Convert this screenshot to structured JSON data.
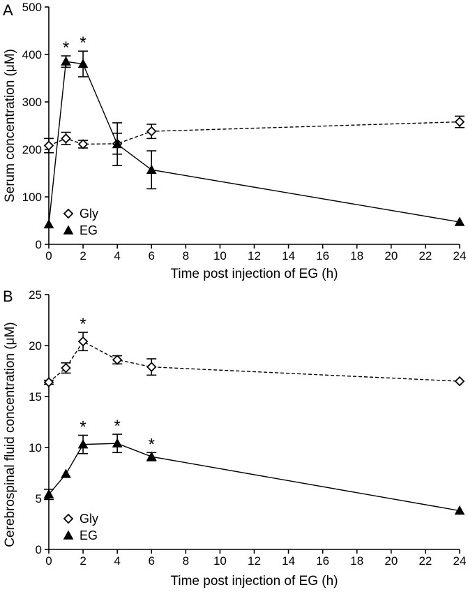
{
  "chart_data": [
    {
      "panel_label": "A",
      "type": "line",
      "title": "",
      "xlabel": "Time post injection of EG (h)",
      "ylabel": "Serum concentration (μM)",
      "xlim": [
        0,
        24
      ],
      "ylim": [
        0,
        500
      ],
      "x_ticks": [
        0,
        2,
        4,
        6,
        8,
        10,
        12,
        14,
        16,
        18,
        20,
        22,
        24
      ],
      "y_ticks": [
        0,
        100,
        200,
        300,
        400,
        500
      ],
      "grid": false,
      "legend_position": "bottom-left",
      "series": [
        {
          "name": "Gly",
          "marker": "open-diamond",
          "line_style": "dashed",
          "x": [
            0,
            1,
            2,
            4,
            6,
            24
          ],
          "y": [
            208,
            223,
            211,
            212,
            238,
            258
          ],
          "error": [
            15,
            13,
            8,
            22,
            15,
            12
          ]
        },
        {
          "name": "EG",
          "marker": "filled-triangle",
          "line_style": "solid",
          "x": [
            0,
            1,
            2,
            4,
            6,
            24
          ],
          "y": [
            42,
            385,
            380,
            211,
            157,
            47
          ],
          "error": [
            0,
            12,
            27,
            45,
            40,
            0
          ]
        }
      ],
      "annotations": [
        {
          "text": "*",
          "x": 1,
          "y": 397
        },
        {
          "text": "*",
          "x": 2,
          "y": 407
        }
      ]
    },
    {
      "panel_label": "B",
      "type": "line",
      "title": "",
      "xlabel": "Time post injection of EG (h)",
      "ylabel": "Cerebrospinal fluid concentration (μM)",
      "xlim": [
        0,
        24
      ],
      "ylim": [
        0,
        25
      ],
      "x_ticks": [
        0,
        2,
        4,
        6,
        8,
        10,
        12,
        14,
        16,
        18,
        20,
        22,
        24
      ],
      "y_ticks": [
        0,
        5,
        10,
        15,
        20,
        25
      ],
      "grid": false,
      "legend_position": "bottom-left",
      "series": [
        {
          "name": "Gly",
          "marker": "open-diamond",
          "line_style": "dashed",
          "x": [
            0,
            1,
            2,
            4,
            6,
            24
          ],
          "y": [
            16.4,
            17.8,
            20.4,
            18.6,
            17.9,
            16.5
          ],
          "error": [
            0.2,
            0.5,
            0.9,
            0.4,
            0.8,
            0.0
          ]
        },
        {
          "name": "EG",
          "marker": "filled-triangle",
          "line_style": "solid",
          "x": [
            0,
            1,
            2,
            4,
            6,
            24
          ],
          "y": [
            5.4,
            7.4,
            10.3,
            10.4,
            9.1,
            3.8
          ],
          "error": [
            0.5,
            0.0,
            0.9,
            0.9,
            0.4,
            0.0
          ]
        }
      ],
      "annotations": [
        {
          "text": "*",
          "x": 2,
          "y": 21.3
        },
        {
          "text": "*",
          "x": 2,
          "y": 11.2
        },
        {
          "text": "*",
          "x": 4,
          "y": 11.3
        },
        {
          "text": "*",
          "x": 6,
          "y": 9.5
        }
      ]
    }
  ]
}
